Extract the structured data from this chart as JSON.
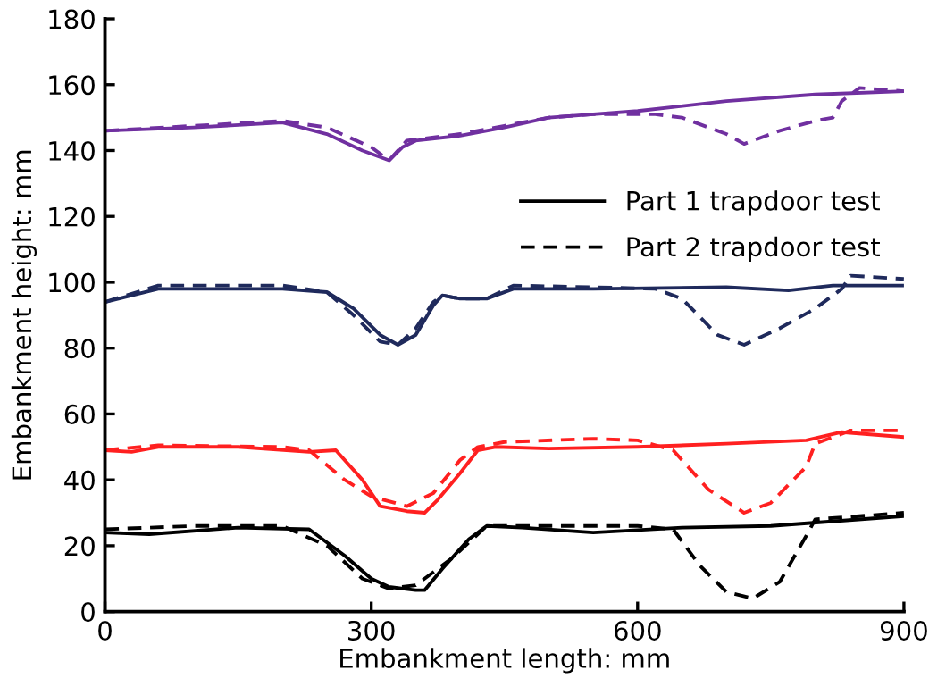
{
  "chart_data": {
    "type": "line",
    "xlabel": "Embankment length: mm",
    "ylabel": "Embankment height: mm",
    "xlim": [
      0,
      900
    ],
    "xticks": [
      0,
      300,
      600,
      900
    ],
    "ylim": [
      0,
      180
    ],
    "yticks": [
      0,
      20,
      40,
      60,
      80,
      100,
      120,
      140,
      160,
      180
    ],
    "grid": false,
    "legend": "top right",
    "marker": "none",
    "series": [
      {
        "color": "#7030a0",
        "line_style": "solid",
        "x": [
          0,
          100,
          200,
          250,
          290,
          320,
          335,
          350,
          400,
          450,
          500,
          550,
          600,
          700,
          800,
          900
        ],
        "values": [
          146,
          147,
          148.5,
          145,
          140,
          137,
          141,
          143,
          144.5,
          147,
          150,
          151,
          152,
          155,
          157,
          158
        ]
      },
      {
        "color": "#7030a0",
        "line_style": "dashed",
        "x": [
          0,
          100,
          200,
          250,
          300,
          320,
          330,
          340,
          400,
          450,
          480,
          500,
          550,
          620,
          650,
          700,
          720,
          760,
          800,
          820,
          830,
          850,
          900
        ],
        "values": [
          146,
          147.5,
          149,
          147,
          141,
          137,
          140,
          143,
          145,
          147.5,
          149,
          150,
          151,
          151,
          150,
          145,
          142,
          146,
          149,
          150,
          155,
          159,
          158
        ]
      },
      {
        "color": "#1f2a5c",
        "line_style": "solid",
        "x": [
          0,
          60,
          200,
          250,
          280,
          310,
          330,
          350,
          370,
          380,
          400,
          430,
          460,
          550,
          700,
          770,
          820,
          900
        ],
        "values": [
          94,
          98,
          98,
          97,
          92,
          84,
          81,
          84,
          93,
          96,
          95,
          95,
          98,
          98,
          98.5,
          97.5,
          99,
          99
        ]
      },
      {
        "color": "#1f2a5c",
        "line_style": "dashed",
        "x": [
          0,
          60,
          200,
          250,
          280,
          310,
          330,
          350,
          370,
          380,
          400,
          430,
          460,
          550,
          620,
          650,
          690,
          720,
          760,
          800,
          830,
          840,
          900
        ],
        "values": [
          94,
          99,
          99,
          97,
          90,
          82,
          81,
          86,
          94,
          96,
          95,
          95,
          99,
          98.5,
          98,
          95,
          84,
          81,
          86,
          92,
          98,
          102,
          101
        ]
      },
      {
        "color": "#ff2020",
        "line_style": "solid",
        "x": [
          0,
          30,
          60,
          150,
          230,
          260,
          290,
          310,
          340,
          360,
          375,
          400,
          420,
          440,
          500,
          600,
          700,
          790,
          830,
          900
        ],
        "values": [
          49,
          48.5,
          50,
          50,
          48.5,
          49,
          40,
          32,
          30.5,
          30,
          34,
          42,
          49,
          50,
          49.5,
          50,
          51,
          52,
          54.5,
          53
        ]
      },
      {
        "color": "#ff2020",
        "line_style": "dashed",
        "x": [
          0,
          60,
          200,
          230,
          270,
          300,
          340,
          370,
          400,
          420,
          450,
          550,
          600,
          640,
          680,
          720,
          750,
          790,
          800,
          840,
          900
        ],
        "values": [
          49,
          50.5,
          50,
          49,
          40,
          35,
          32,
          36,
          46,
          50,
          51.5,
          52.5,
          52,
          49,
          37,
          30,
          33,
          44,
          51,
          55,
          55
        ]
      },
      {
        "name": "Part 1 trapdoor test",
        "color": "#000000",
        "line_style": "solid",
        "x": [
          0,
          50,
          150,
          230,
          270,
          300,
          320,
          350,
          360,
          380,
          410,
          430,
          470,
          550,
          650,
          750,
          900
        ],
        "values": [
          24,
          23.5,
          25.5,
          25,
          17,
          10,
          7.5,
          6.5,
          6.5,
          13,
          22,
          26,
          25.5,
          24,
          25.5,
          26,
          29
        ]
      },
      {
        "name": "Part 2 trapdoor test",
        "color": "#000000",
        "line_style": "dashed",
        "x": [
          0,
          100,
          200,
          250,
          290,
          320,
          350,
          390,
          430,
          500,
          600,
          640,
          670,
          700,
          730,
          760,
          790,
          800,
          900
        ],
        "values": [
          25,
          26,
          26,
          20,
          10,
          7,
          8,
          16,
          26,
          26,
          26,
          25,
          14,
          6,
          4,
          9,
          23,
          28,
          30
        ]
      }
    ]
  }
}
